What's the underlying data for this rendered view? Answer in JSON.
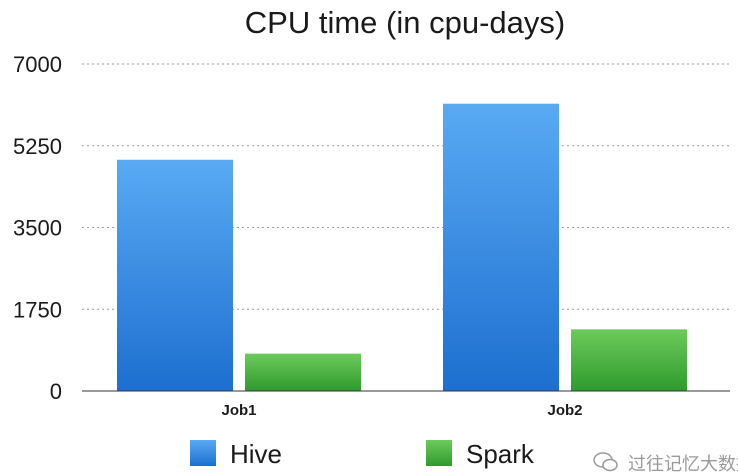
{
  "chart_data": {
    "type": "bar",
    "title": "CPU time (in cpu-days)",
    "xlabel": "",
    "ylabel": "",
    "categories": [
      "Job1",
      "Job2"
    ],
    "series": [
      {
        "name": "Hive",
        "values": [
          4950,
          6150
        ],
        "color_top": "#59aaf3",
        "color_bottom": "#1d6fd0"
      },
      {
        "name": "Spark",
        "values": [
          800,
          1320
        ],
        "color_top": "#6ccb5a",
        "color_bottom": "#2f9a2e"
      }
    ],
    "ylim": [
      0,
      7000
    ],
    "yticks": [
      0,
      1750,
      3500,
      5250,
      7000
    ],
    "grid": true,
    "legend_position": "bottom"
  },
  "watermark": "过往记忆大数据"
}
